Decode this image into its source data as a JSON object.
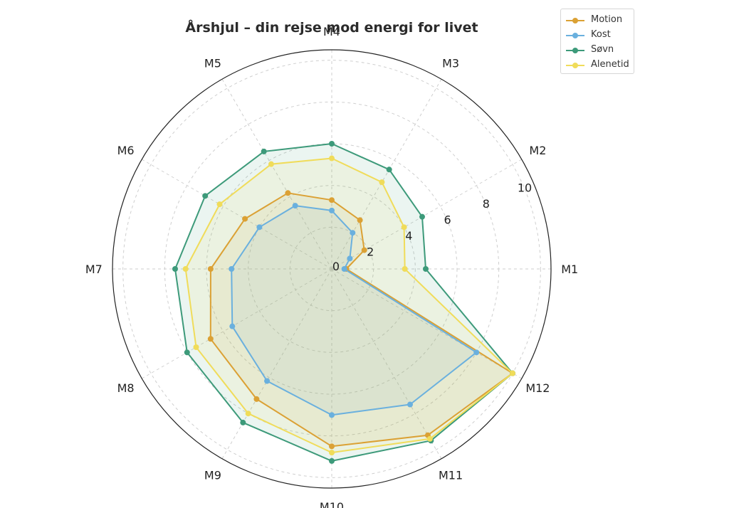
{
  "chart_data": {
    "type": "radar",
    "title": "Årshjul – din rejse mod energi for livet",
    "categories": [
      "M1",
      "M2",
      "M3",
      "M4",
      "M5",
      "M6",
      "M7",
      "M8",
      "M9",
      "M10",
      "M11",
      "M12"
    ],
    "rlim": [
      0,
      10.5
    ],
    "rticks": [
      0,
      2,
      4,
      6,
      8,
      10
    ],
    "grid": true,
    "legend_position": "top-right",
    "series": [
      {
        "name": "Motion",
        "color": "#dba134",
        "values": [
          0.7,
          1.8,
          2.7,
          3.3,
          4.2,
          4.8,
          5.8,
          6.7,
          7.2,
          8.5,
          9.2,
          10.0
        ]
      },
      {
        "name": "Kost",
        "color": "#6ab0de",
        "values": [
          0.6,
          1.0,
          2.0,
          2.8,
          3.5,
          4.0,
          4.8,
          5.5,
          6.2,
          7.0,
          7.5,
          8.0
        ]
      },
      {
        "name": "Søvn",
        "color": "#3d9a7a",
        "values": [
          4.5,
          5.0,
          5.5,
          6.0,
          6.5,
          7.0,
          7.5,
          8.0,
          8.5,
          9.2,
          9.5,
          10.0
        ]
      },
      {
        "name": "Alenetid",
        "color": "#f0dc5a",
        "values": [
          3.5,
          4.0,
          4.8,
          5.3,
          5.8,
          6.2,
          7.0,
          7.5,
          8.0,
          8.8,
          9.4,
          10.0
        ]
      }
    ]
  }
}
